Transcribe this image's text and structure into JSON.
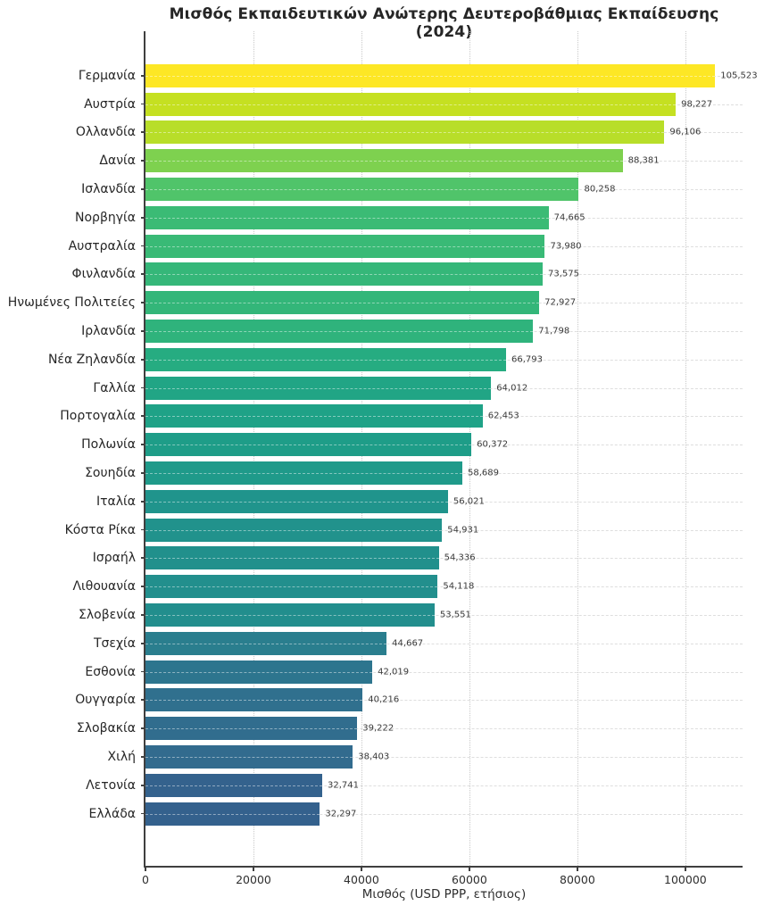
{
  "chart_data": {
    "type": "bar",
    "orientation": "horizontal",
    "title": "Μισθός Εκπαιδευτικών Ανώτερης Δευτεροβάθμιας Εκπαίδευσης (2024)",
    "xlabel": "Μισθός (USD PPP, ετήσιος)",
    "ylabel": "",
    "xlim": [
      0,
      110600
    ],
    "x_ticks": [
      0,
      20000,
      40000,
      60000,
      80000,
      100000
    ],
    "x_tick_labels": [
      "0",
      "20000",
      "40000",
      "60000",
      "80000",
      "100000"
    ],
    "grid": true,
    "legend": false,
    "colormap": "viridis",
    "categories": [
      "Γερμανία",
      "Αυστρία",
      "Ολλανδία",
      "Δανία",
      "Ισλανδία",
      "Νορβηγία",
      "Αυστραλία",
      "Φινλανδία",
      "Ηνωμένες Πολιτείες",
      "Ιρλανδία",
      "Νέα Ζηλανδία",
      "Γαλλία",
      "Πορτογαλία",
      "Πολωνία",
      "Σουηδία",
      "Ιταλία",
      "Κόστα Ρίκα",
      "Ισραήλ",
      "Λιθουανία",
      "Σλοβενία",
      "Τσεχία",
      "Εσθονία",
      "Ουγγαρία",
      "Σλοβακία",
      "Χιλή",
      "Λετονία",
      "Ελλάδα"
    ],
    "values": [
      105523,
      98227,
      96106,
      88381,
      80258,
      74665,
      73980,
      73575,
      72927,
      71798,
      66793,
      64012,
      62453,
      60372,
      58689,
      56021,
      54931,
      54336,
      54118,
      53551,
      44667,
      42019,
      40216,
      39222,
      38403,
      32741,
      32297
    ],
    "value_labels": [
      "105,523",
      "98,227",
      "96,106",
      "88,381",
      "80,258",
      "74,665",
      "73,980",
      "73,575",
      "72,927",
      "71,798",
      "66,793",
      "64,012",
      "62,453",
      "60,372",
      "58,689",
      "56,021",
      "54,931",
      "54,336",
      "54,118",
      "53,551",
      "44,667",
      "42,019",
      "40,216",
      "39,222",
      "38,403",
      "32,741",
      "32,297"
    ],
    "bar_colors": [
      "#fde725",
      "#c5e021",
      "#b8de29",
      "#7ed14f",
      "#50c46a",
      "#3bbb75",
      "#39ba76",
      "#35b779",
      "#33b679",
      "#2fb37c",
      "#26ac81",
      "#21a585",
      "#1fa287",
      "#1e9d88",
      "#1f9a8a",
      "#20948c",
      "#21928c",
      "#21908c",
      "#228f8d",
      "#228e8d",
      "#2a7e8e",
      "#2d758e",
      "#30708e",
      "#316d8e",
      "#326b8e",
      "#34628d",
      "#34618d"
    ],
    "spine_color": "#3f3f3f",
    "text_color": "#262626"
  }
}
